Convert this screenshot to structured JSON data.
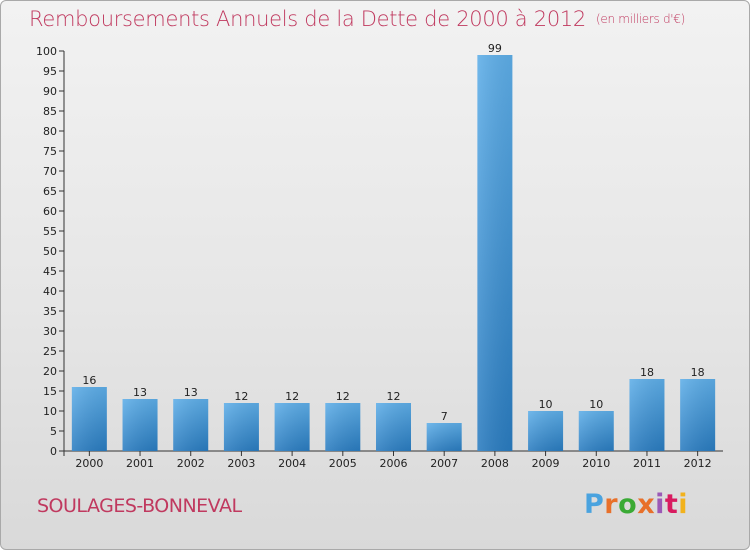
{
  "header": {
    "title": "Remboursements Annuels de la Dette de 2000 à 2012",
    "unit": "(en milliers d'€)"
  },
  "footer": {
    "commune": "SOULAGES-BONNEVAL",
    "brand": "Proxiti",
    "brand_colors": [
      "#4aa3df",
      "#e8702a",
      "#3aaa35",
      "#e8702a",
      "#9b59b6",
      "#d81b60",
      "#f2b21c"
    ]
  },
  "colors": {
    "title": "#c0395f",
    "bar_top": "#5eaee8",
    "bar_bottom": "#2a7cc0",
    "axis": "#333333"
  },
  "chart_data": {
    "type": "bar",
    "title": "Remboursements Annuels de la Dette de 2000 à 2012",
    "subtitle": "(en milliers d'€)",
    "xlabel": "",
    "ylabel": "",
    "categories": [
      "2000",
      "2001",
      "2002",
      "2003",
      "2004",
      "2005",
      "2006",
      "2007",
      "2008",
      "2009",
      "2010",
      "2011",
      "2012"
    ],
    "values": [
      16,
      13,
      13,
      12,
      12,
      12,
      12,
      7,
      99,
      10,
      10,
      18,
      18
    ],
    "ylim": [
      0,
      100
    ],
    "ytick_step": 5,
    "grid": false,
    "legend": "none",
    "data_labels": true
  }
}
